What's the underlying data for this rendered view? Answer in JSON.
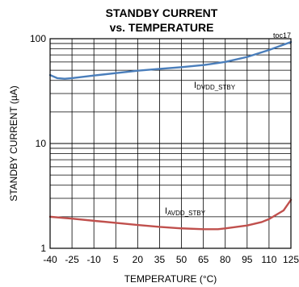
{
  "chart_data": {
    "type": "line",
    "title": "STANDBY CURRENT",
    "subtitle": "vs. TEMPERATURE",
    "tag": "toc17",
    "xlabel": "TEMPERATURE (°C)",
    "ylabel": "STANDBY CURRENT (µA)",
    "xlim": [
      -40,
      125
    ],
    "ylim": [
      1,
      100
    ],
    "yscale": "log",
    "grid": true,
    "x_ticks": [
      -40,
      -25,
      -10,
      5,
      20,
      35,
      50,
      65,
      80,
      95,
      110,
      125
    ],
    "x_tick_labels": [
      "-40",
      "-25",
      "-10",
      "5",
      "20",
      "35",
      "50",
      "65",
      "80",
      "95",
      "110",
      "125"
    ],
    "y_ticks": [
      1,
      10,
      100
    ],
    "y_tick_labels": [
      "1",
      "10",
      "100"
    ],
    "series": [
      {
        "name_main": "I",
        "name_sub": "DVDD_STBY",
        "color": "#4a7ebb",
        "x": [
          -40,
          -35,
          -30,
          -25,
          -10,
          5,
          20,
          35,
          50,
          65,
          80,
          95,
          110,
          125
        ],
        "y": [
          45,
          42,
          41.5,
          42,
          44.5,
          47,
          49.5,
          51.5,
          53.5,
          56,
          60,
          67,
          78,
          93
        ]
      },
      {
        "name_main": "I",
        "name_sub": "AVDD_STBY",
        "color": "#c0504d",
        "x": [
          -40,
          -25,
          -10,
          5,
          20,
          35,
          50,
          65,
          75,
          80,
          95,
          105,
          110,
          120,
          125
        ],
        "y": [
          2.0,
          1.92,
          1.83,
          1.75,
          1.67,
          1.6,
          1.55,
          1.52,
          1.52,
          1.55,
          1.65,
          1.78,
          1.9,
          2.3,
          2.9
        ]
      }
    ]
  }
}
